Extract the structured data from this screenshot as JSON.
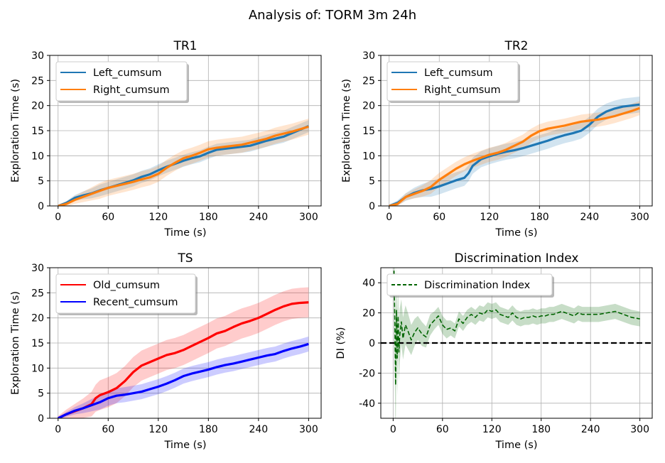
{
  "suptitle": "Analysis of: TORM 3m 24h",
  "chart_data": [
    {
      "id": "tr1",
      "type": "line",
      "title": "TR1",
      "xlabel": "Time (s)",
      "ylabel": "Exploration Time (s)",
      "xlim": [
        -10,
        315
      ],
      "ylim": [
        0,
        30
      ],
      "xticks": [
        0,
        60,
        120,
        180,
        240,
        300
      ],
      "yticks": [
        0,
        5,
        10,
        15,
        20,
        25,
        30
      ],
      "grid": true,
      "legend": "top-left",
      "series": [
        {
          "name": "Left_cumsum",
          "color": "#1f77b4",
          "x": [
            0,
            10,
            20,
            30,
            40,
            50,
            60,
            70,
            80,
            90,
            100,
            110,
            120,
            130,
            140,
            150,
            160,
            170,
            180,
            190,
            200,
            210,
            220,
            230,
            240,
            250,
            260,
            270,
            280,
            290,
            300
          ],
          "y": [
            0,
            0.6,
            1.6,
            2.1,
            2.5,
            3.1,
            3.6,
            4.1,
            4.6,
            5.1,
            5.8,
            6.3,
            7.1,
            7.8,
            8.4,
            9.0,
            9.5,
            9.9,
            10.6,
            11.2,
            11.4,
            11.6,
            11.8,
            12.0,
            12.5,
            13.0,
            13.4,
            13.8,
            14.5,
            15.2,
            15.9
          ],
          "band": 1.2
        },
        {
          "name": "Right_cumsum",
          "color": "#ff7f0e",
          "x": [
            0,
            10,
            20,
            30,
            40,
            50,
            60,
            70,
            80,
            90,
            100,
            110,
            120,
            130,
            140,
            150,
            160,
            170,
            180,
            190,
            200,
            210,
            220,
            230,
            240,
            250,
            260,
            270,
            280,
            290,
            300
          ],
          "y": [
            0,
            0.4,
            1.2,
            1.8,
            2.4,
            3.0,
            3.6,
            4.0,
            4.4,
            4.8,
            5.3,
            5.7,
            6.4,
            7.6,
            8.6,
            9.5,
            10.0,
            10.6,
            11.3,
            11.6,
            11.8,
            12.0,
            12.2,
            12.6,
            13.0,
            13.4,
            14.0,
            14.4,
            14.8,
            15.3,
            15.8
          ],
          "band": 1.6
        }
      ]
    },
    {
      "id": "tr2",
      "type": "line",
      "title": "TR2",
      "xlabel": "Time (s)",
      "ylabel": "Exploration Time (s)",
      "xlim": [
        -10,
        315
      ],
      "ylim": [
        0,
        30
      ],
      "xticks": [
        0,
        60,
        120,
        180,
        240,
        300
      ],
      "yticks": [
        0,
        5,
        10,
        15,
        20,
        25,
        30
      ],
      "grid": true,
      "legend": "top-left",
      "series": [
        {
          "name": "Left_cumsum",
          "color": "#1f77b4",
          "x": [
            0,
            10,
            20,
            30,
            40,
            50,
            60,
            70,
            80,
            90,
            95,
            100,
            110,
            120,
            130,
            140,
            150,
            160,
            170,
            180,
            190,
            200,
            210,
            220,
            230,
            240,
            250,
            260,
            270,
            280,
            290,
            300
          ],
          "y": [
            0,
            0.6,
            1.8,
            2.6,
            3.1,
            3.4,
            3.9,
            4.5,
            5.1,
            5.6,
            6.5,
            8.0,
            9.3,
            9.9,
            10.4,
            10.8,
            11.1,
            11.5,
            12.0,
            12.5,
            13.0,
            13.6,
            14.1,
            14.5,
            15.0,
            16.2,
            17.8,
            18.8,
            19.4,
            19.8,
            20.0,
            20.2
          ],
          "band": 1.6
        },
        {
          "name": "Right_cumsum",
          "color": "#ff7f0e",
          "x": [
            0,
            10,
            20,
            30,
            40,
            50,
            60,
            70,
            80,
            90,
            100,
            110,
            120,
            130,
            140,
            150,
            160,
            170,
            180,
            190,
            200,
            210,
            220,
            230,
            240,
            250,
            260,
            270,
            280,
            290,
            300
          ],
          "y": [
            0,
            0.4,
            1.8,
            2.4,
            3.0,
            3.8,
            5.2,
            6.3,
            7.4,
            8.3,
            9.0,
            9.6,
            10.2,
            10.6,
            11.2,
            12.0,
            12.8,
            14.0,
            14.9,
            15.4,
            15.7,
            16.0,
            16.4,
            16.8,
            17.0,
            17.2,
            17.5,
            17.9,
            18.4,
            18.9,
            19.5
          ],
          "band": 1.4
        }
      ]
    },
    {
      "id": "ts",
      "type": "line",
      "title": "TS",
      "xlabel": "Time (s)",
      "ylabel": "Exploration Time (s)",
      "xlim": [
        -10,
        315
      ],
      "ylim": [
        0,
        30
      ],
      "xticks": [
        0,
        60,
        120,
        180,
        240,
        300
      ],
      "yticks": [
        0,
        5,
        10,
        15,
        20,
        25,
        30
      ],
      "grid": true,
      "legend": "top-left",
      "series": [
        {
          "name": "Old_cumsum",
          "color": "#ff0000",
          "x": [
            0,
            10,
            20,
            30,
            40,
            45,
            50,
            60,
            70,
            80,
            90,
            100,
            110,
            120,
            130,
            140,
            150,
            160,
            170,
            180,
            190,
            200,
            210,
            220,
            230,
            240,
            250,
            260,
            270,
            280,
            290,
            300
          ],
          "y": [
            0,
            0.8,
            1.4,
            2.0,
            2.8,
            4.0,
            4.6,
            5.2,
            6.0,
            7.4,
            9.2,
            10.5,
            11.2,
            11.9,
            12.6,
            13.0,
            13.6,
            14.4,
            15.2,
            16.0,
            16.9,
            17.4,
            18.2,
            18.9,
            19.4,
            20.0,
            20.8,
            21.6,
            22.3,
            22.8,
            23.0,
            23.1
          ],
          "band": 3.0
        },
        {
          "name": "Recent_cumsum",
          "color": "#0000ff",
          "x": [
            0,
            10,
            20,
            30,
            40,
            50,
            60,
            70,
            80,
            90,
            100,
            110,
            120,
            130,
            140,
            150,
            160,
            170,
            180,
            190,
            200,
            210,
            220,
            230,
            240,
            250,
            260,
            270,
            280,
            290,
            300
          ],
          "y": [
            0,
            0.8,
            1.5,
            2.0,
            2.6,
            3.2,
            4.0,
            4.5,
            4.7,
            5.0,
            5.3,
            5.8,
            6.3,
            6.9,
            7.6,
            8.4,
            8.9,
            9.3,
            9.7,
            10.2,
            10.6,
            10.9,
            11.3,
            11.7,
            12.1,
            12.5,
            12.8,
            13.4,
            13.9,
            14.3,
            14.8
          ],
          "band": 1.5
        }
      ]
    },
    {
      "id": "di",
      "type": "line",
      "title": "Discrimination Index",
      "xlabel": "Time (s)",
      "ylabel": "DI (%)",
      "xlim": [
        -15,
        315
      ],
      "ylim": [
        -50,
        50
      ],
      "xticks": [
        0,
        60,
        120,
        180,
        240,
        300
      ],
      "yticks": [
        -40,
        -20,
        0,
        20,
        40
      ],
      "grid": true,
      "legend": "top-left",
      "zero_line": true,
      "series": [
        {
          "name": "Discrimination Index",
          "color": "#006400",
          "dashed": true,
          "x": [
            1,
            2,
            3,
            4,
            5,
            6,
            7,
            8,
            10,
            12,
            15,
            18,
            22,
            26,
            30,
            35,
            40,
            45,
            50,
            55,
            60,
            65,
            70,
            75,
            80,
            85,
            90,
            95,
            100,
            105,
            110,
            115,
            120,
            125,
            130,
            135,
            140,
            145,
            150,
            155,
            160,
            165,
            170,
            175,
            180,
            185,
            190,
            195,
            200,
            205,
            210,
            215,
            220,
            225,
            230,
            240,
            250,
            260,
            270,
            280,
            290,
            300
          ],
          "y": [
            48,
            15,
            -28,
            22,
            -10,
            18,
            -6,
            5,
            14,
            3,
            12,
            8,
            2,
            7,
            10,
            6,
            4,
            12,
            15,
            18,
            12,
            9,
            10,
            8,
            16,
            13,
            17,
            19,
            17,
            20,
            19,
            22,
            21,
            22,
            19,
            18,
            17,
            20,
            17,
            16,
            17,
            17,
            18,
            17,
            18,
            18,
            19,
            19,
            20,
            21,
            20,
            19,
            18,
            20,
            19,
            19,
            19,
            20,
            21,
            19,
            17,
            16
          ],
          "band": [
            40,
            40,
            40,
            30,
            25,
            22,
            20,
            18,
            15,
            14,
            13,
            12,
            10,
            9,
            8,
            8,
            7,
            7,
            6,
            6,
            6,
            6,
            5,
            5,
            5,
            5,
            5,
            5,
            5,
            5,
            5,
            5,
            5,
            5,
            5,
            5,
            5,
            5,
            5,
            5,
            5,
            5,
            5,
            5,
            5,
            5,
            5,
            5,
            5,
            5,
            5,
            5,
            5,
            5,
            5,
            5,
            5,
            5,
            5,
            5,
            5,
            5
          ]
        }
      ]
    }
  ]
}
